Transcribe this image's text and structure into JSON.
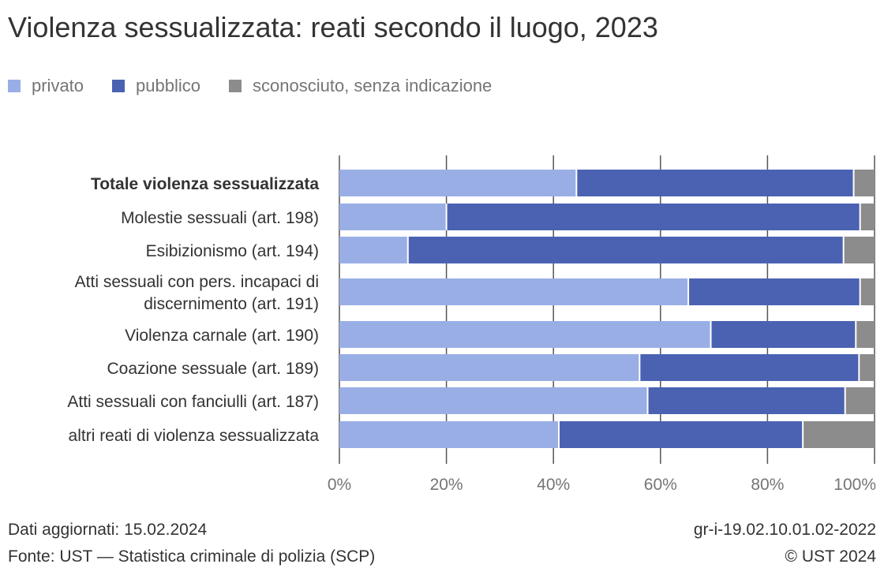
{
  "title": "Violenza sessualizzata: reati secondo il luogo, 2023",
  "chart_data": {
    "type": "bar",
    "orientation": "horizontal",
    "stacked": true,
    "categories": [
      "Totale violenza sessualizzata",
      "Molestie sessuali (art. 198)",
      "Esibizionismo (art. 194)",
      "Atti sessuali con pers. incapaci di discernimento (art. 191)",
      "Violenza carnale (art. 190)",
      "Coazione sessuale (art. 189)",
      "Atti sessuali con fanciulli (art. 187)",
      "altri reati di violenza sessualizzata"
    ],
    "category_lines": [
      [
        "Totale violenza sessualizzata"
      ],
      [
        "Molestie sessuali (art. 198)"
      ],
      [
        "Esibizionismo (art. 194)"
      ],
      [
        "Atti sessuali con pers. incapaci di",
        "discernimento (art. 191)"
      ],
      [
        "Violenza carnale (art. 190)"
      ],
      [
        "Coazione sessuale (art. 189)"
      ],
      [
        "Atti sessuali con fanciulli (art. 187)"
      ],
      [
        "altri reati di violenza sessualizzata"
      ]
    ],
    "series": [
      {
        "name": "privato",
        "color": "#9aaee6",
        "values": [
          44.3,
          20.0,
          12.8,
          65.2,
          69.4,
          56.1,
          57.6,
          41.0
        ]
      },
      {
        "name": "pubblico",
        "color": "#4b62b2",
        "values": [
          51.8,
          77.3,
          81.4,
          32.1,
          27.1,
          41.0,
          36.9,
          45.6
        ]
      },
      {
        "name": "sconosciuto, senza indicazione",
        "color": "#8c8c8c",
        "values": [
          3.9,
          2.7,
          5.8,
          2.7,
          3.5,
          2.9,
          5.5,
          13.4
        ]
      }
    ],
    "xlim": [
      0,
      100
    ],
    "x_ticks": [
      "0%",
      "20%",
      "40%",
      "60%",
      "80%",
      "100%"
    ],
    "legend_position": "top-left",
    "grid": true
  },
  "footer": {
    "updated": "Dati aggiornati: 15.02.2024",
    "source": "Fonte: UST — Statistica criminale di polizia (SCP)",
    "code": "gr-i-19.02.10.01.02-2022",
    "copyright": "© UST 2024"
  }
}
